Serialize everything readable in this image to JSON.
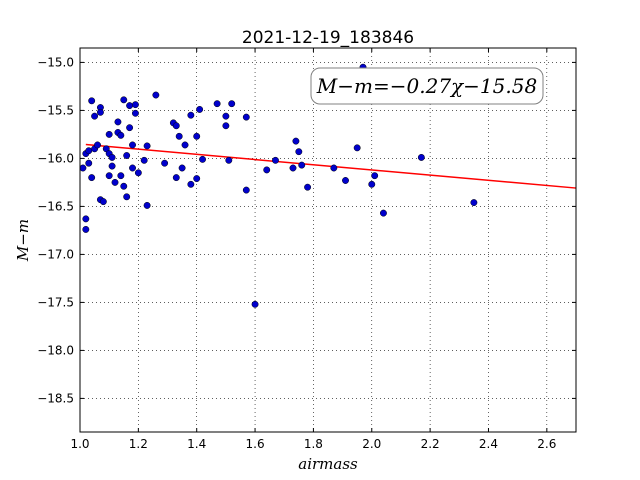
{
  "chart_data": {
    "type": "scatter",
    "title": "2021-12-19_183846",
    "xlabel": "airmass",
    "ylabel": "M−m",
    "xlim": [
      1.0,
      2.7
    ],
    "ylim": [
      -18.85,
      -14.85
    ],
    "y_inverted": true,
    "grid": true,
    "x_ticks": [
      "1.0",
      "1.2",
      "1.4",
      "1.6",
      "1.8",
      "2.0",
      "2.2",
      "2.4",
      "2.6"
    ],
    "y_ticks": [
      "−15.0",
      "−15.5",
      "−16.0",
      "−16.5",
      "−17.0",
      "−17.5",
      "−18.0",
      "−18.5"
    ],
    "x_tick_values": [
      1.0,
      1.2,
      1.4,
      1.6,
      1.8,
      2.0,
      2.2,
      2.4,
      2.6
    ],
    "y_tick_values": [
      -15.0,
      -15.5,
      -16.0,
      -16.5,
      -17.0,
      -17.5,
      -18.0,
      -18.5
    ],
    "annotation": "M−m=−0.27χ−15.58",
    "fit": {
      "slope": -0.27,
      "intercept": -15.58,
      "x_range": [
        1.02,
        2.7
      ],
      "color": "#ff0000"
    },
    "point_color": "#0000cc",
    "points": [
      [
        1.01,
        -16.1
      ],
      [
        1.02,
        -16.74
      ],
      [
        1.02,
        -16.63
      ],
      [
        1.02,
        -15.95
      ],
      [
        1.03,
        -16.05
      ],
      [
        1.03,
        -15.92
      ],
      [
        1.04,
        -16.2
      ],
      [
        1.04,
        -15.4
      ],
      [
        1.05,
        -15.56
      ],
      [
        1.05,
        -15.9
      ],
      [
        1.06,
        -15.86
      ],
      [
        1.07,
        -15.47
      ],
      [
        1.07,
        -15.52
      ],
      [
        1.07,
        -16.43
      ],
      [
        1.08,
        -16.45
      ],
      [
        1.09,
        -15.9
      ],
      [
        1.1,
        -15.95
      ],
      [
        1.1,
        -15.75
      ],
      [
        1.1,
        -16.18
      ],
      [
        1.11,
        -15.99
      ],
      [
        1.11,
        -16.08
      ],
      [
        1.12,
        -16.25
      ],
      [
        1.13,
        -15.73
      ],
      [
        1.13,
        -15.62
      ],
      [
        1.14,
        -15.76
      ],
      [
        1.14,
        -16.18
      ],
      [
        1.15,
        -15.39
      ],
      [
        1.15,
        -16.29
      ],
      [
        1.16,
        -15.97
      ],
      [
        1.16,
        -16.4
      ],
      [
        1.17,
        -15.45
      ],
      [
        1.17,
        -15.68
      ],
      [
        1.18,
        -15.86
      ],
      [
        1.18,
        -16.1
      ],
      [
        1.19,
        -15.44
      ],
      [
        1.19,
        -15.53
      ],
      [
        1.2,
        -16.15
      ],
      [
        1.22,
        -16.02
      ],
      [
        1.23,
        -15.87
      ],
      [
        1.23,
        -16.49
      ],
      [
        1.26,
        -15.34
      ],
      [
        1.29,
        -16.05
      ],
      [
        1.32,
        -15.63
      ],
      [
        1.33,
        -15.66
      ],
      [
        1.33,
        -16.2
      ],
      [
        1.34,
        -15.77
      ],
      [
        1.35,
        -16.1
      ],
      [
        1.36,
        -15.86
      ],
      [
        1.38,
        -15.55
      ],
      [
        1.38,
        -16.27
      ],
      [
        1.4,
        -15.77
      ],
      [
        1.4,
        -16.21
      ],
      [
        1.41,
        -15.49
      ],
      [
        1.42,
        -16.01
      ],
      [
        1.47,
        -15.43
      ],
      [
        1.5,
        -15.56
      ],
      [
        1.5,
        -15.66
      ],
      [
        1.51,
        -16.02
      ],
      [
        1.52,
        -15.43
      ],
      [
        1.57,
        -15.57
      ],
      [
        1.57,
        -16.33
      ],
      [
        1.6,
        -17.52
      ],
      [
        1.64,
        -16.12
      ],
      [
        1.67,
        -16.02
      ],
      [
        1.73,
        -16.1
      ],
      [
        1.74,
        -15.82
      ],
      [
        1.75,
        -15.93
      ],
      [
        1.76,
        -16.07
      ],
      [
        1.78,
        -16.3
      ],
      [
        1.87,
        -16.1
      ],
      [
        1.91,
        -16.23
      ],
      [
        1.95,
        -15.89
      ],
      [
        1.97,
        -15.05
      ],
      [
        2.0,
        -16.27
      ],
      [
        2.01,
        -16.18
      ],
      [
        2.04,
        -16.57
      ],
      [
        2.17,
        -15.99
      ],
      [
        2.35,
        -16.46
      ]
    ]
  }
}
